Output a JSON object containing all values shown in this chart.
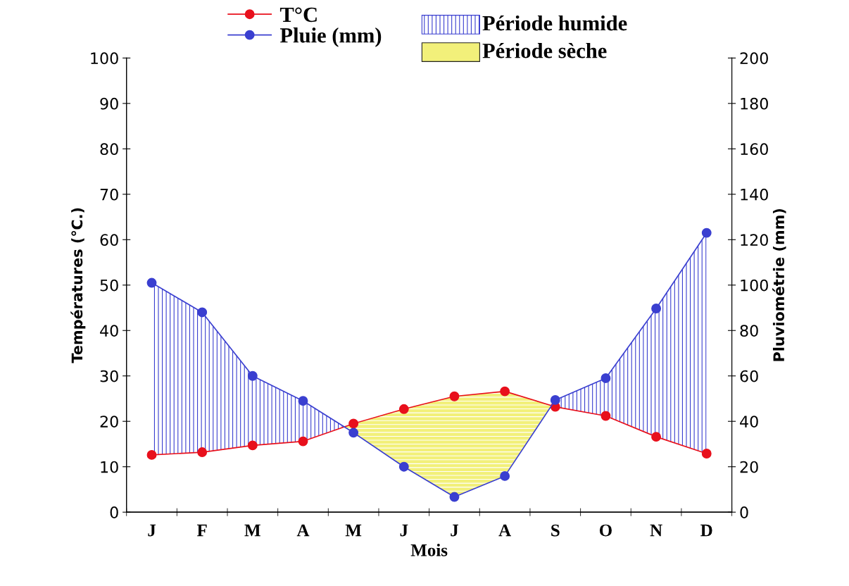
{
  "chart_data": {
    "type": "line",
    "categories": [
      "J",
      "F",
      "M",
      "A",
      "M",
      "J",
      "J",
      "A",
      "S",
      "O",
      "N",
      "D"
    ],
    "series": [
      {
        "name": "T°C",
        "color": "#e8101c",
        "values": [
          12.6,
          13.2,
          14.7,
          15.6,
          19.5,
          22.7,
          25.5,
          26.6,
          23.2,
          21.2,
          16.6,
          12.9
        ]
      },
      {
        "name": "Pluie (mm)",
        "color": "#3a3fd0",
        "axis": "y2",
        "values": [
          101,
          88,
          60,
          49,
          35,
          20,
          6.7,
          15.9,
          49.4,
          59,
          89.7,
          123
        ]
      }
    ],
    "annotations": [
      "Période humide",
      "Période sèche"
    ],
    "xlabel": "Mois",
    "ylabel": "Températures (℃.)",
    "y2label": "Pluviométrie (mm)",
    "ylim": [
      0,
      100
    ],
    "yticks": [
      0,
      10,
      20,
      30,
      40,
      50,
      60,
      70,
      80,
      90,
      100
    ],
    "y2lim": [
      0,
      200
    ],
    "y2ticks": [
      0,
      20,
      40,
      60,
      80,
      100,
      120,
      140,
      160,
      180,
      200
    ],
    "marker": "circle",
    "legend": "top",
    "grid": false
  }
}
